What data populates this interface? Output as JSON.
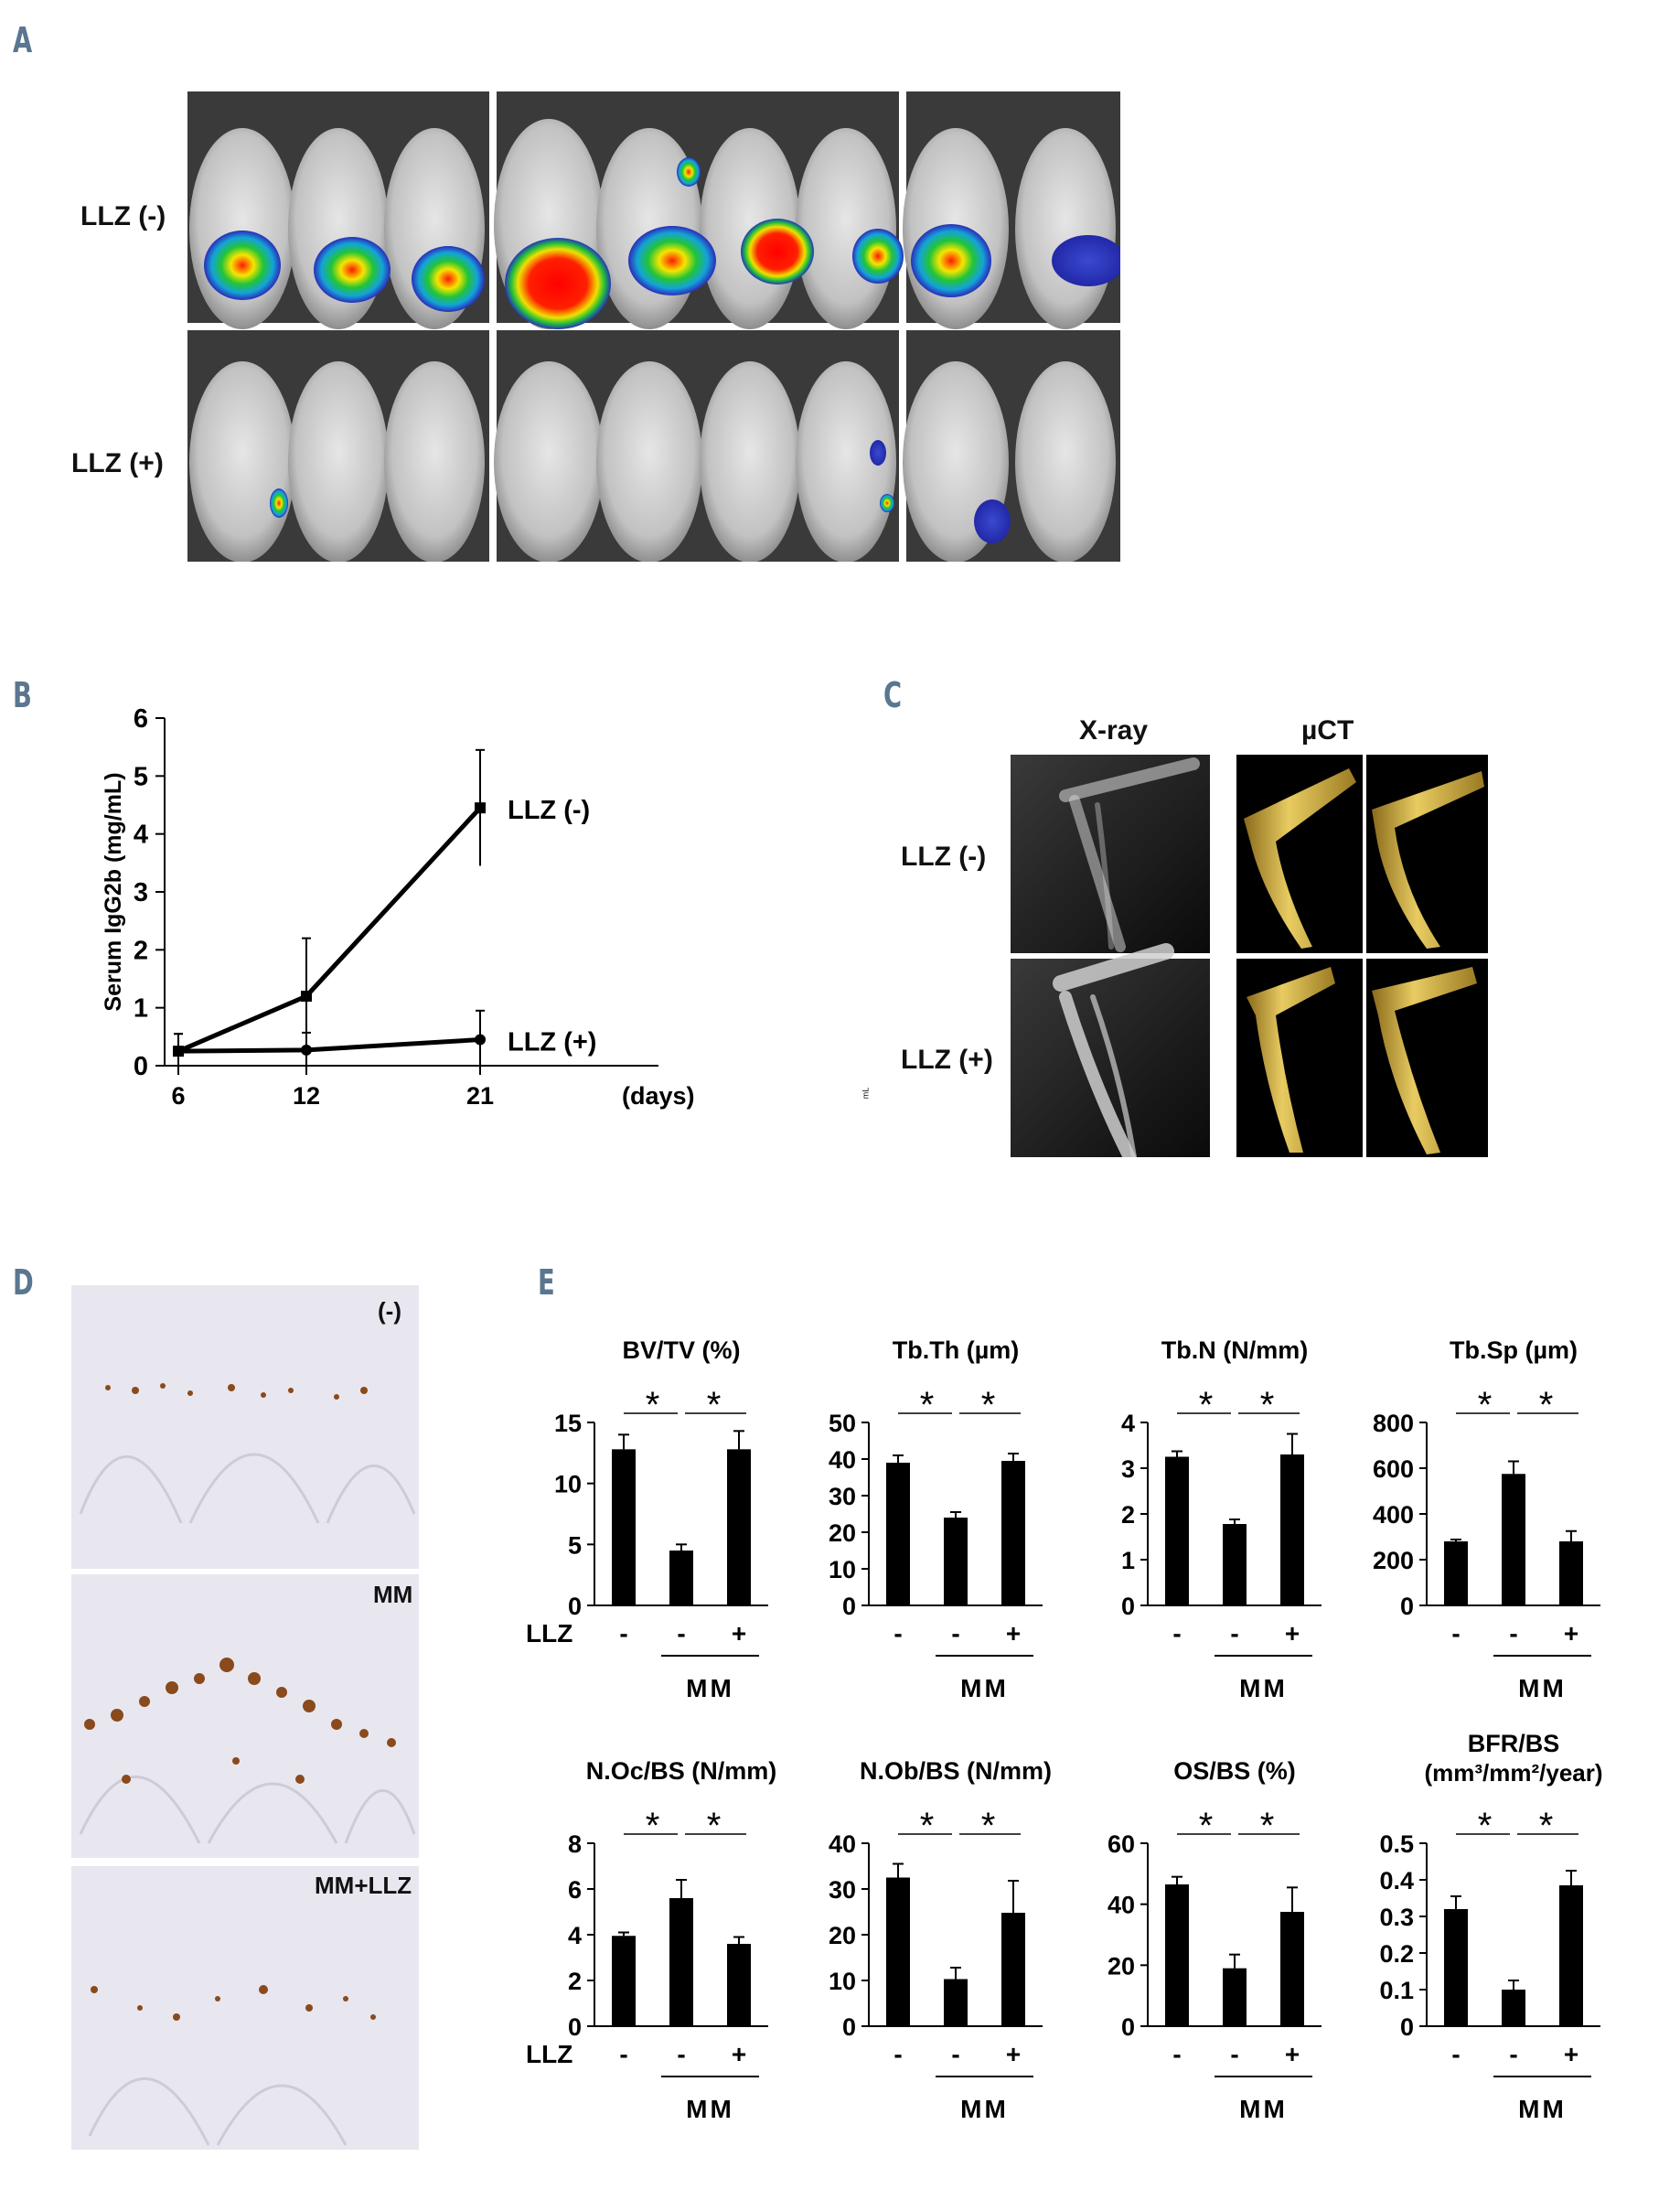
{
  "panels": {
    "a": "A",
    "b": "B",
    "c": "C",
    "d": "D",
    "e": "E"
  },
  "panel_a": {
    "row_labels": [
      "LLZ (-)",
      "LLZ (+)"
    ]
  },
  "panel_c": {
    "col_labels": [
      "X-ray",
      "µCT"
    ],
    "row_labels": [
      "LLZ (-)",
      "LLZ (+)"
    ],
    "stray_mark": "mL"
  },
  "panel_d": {
    "labels": [
      "(-)",
      "MM",
      "MM+LLZ"
    ]
  },
  "colors": {
    "line": "#000000",
    "bar": "#000000",
    "panel_letter": "#5a7690",
    "stain": "#8a4a1c",
    "bone": "#d9b94a"
  },
  "chart_data": [
    {
      "id": "B",
      "type": "line",
      "ylabel": "Serum IgG2b (mg/mL)",
      "xlabel": "(days)",
      "ylim": [
        0,
        6
      ],
      "yticks": [
        "0",
        "1",
        "2",
        "3",
        "4",
        "5",
        "6"
      ],
      "x": [
        "6",
        "12",
        "21"
      ],
      "series": [
        {
          "name": "LLZ (-)",
          "values": [
            0.25,
            1.2,
            4.45
          ],
          "err": [
            0.3,
            1.0,
            1.0
          ]
        },
        {
          "name": "LLZ (+)",
          "values": [
            0.25,
            0.27,
            0.45
          ],
          "err": [
            0.3,
            0.3,
            0.5
          ]
        }
      ]
    },
    {
      "id": "BVTV",
      "type": "bar",
      "title": "BV/TV (%)",
      "ylim": [
        0,
        15
      ],
      "yticks": [
        "0",
        "5",
        "10",
        "15"
      ],
      "values": [
        12.8,
        4.5,
        12.8
      ],
      "err": [
        1.2,
        0.5,
        1.5
      ],
      "categories": [
        "-",
        "-",
        "+"
      ],
      "row_label": "LLZ",
      "group_label": "MM",
      "sig": [
        "*",
        "*"
      ]
    },
    {
      "id": "TbTh",
      "type": "bar",
      "title": "Tb.Th (µm)",
      "ylim": [
        0,
        50
      ],
      "yticks": [
        "0",
        "10",
        "20",
        "30",
        "40",
        "50"
      ],
      "values": [
        39,
        24,
        39.5
      ],
      "err": [
        2,
        1.5,
        2
      ],
      "categories": [
        "-",
        "-",
        "+"
      ],
      "row_label": "",
      "group_label": "MM",
      "sig": [
        "*",
        "*"
      ]
    },
    {
      "id": "TbN",
      "type": "bar",
      "title": "Tb.N (N/mm)",
      "ylim": [
        0,
        4
      ],
      "yticks": [
        "0",
        "1",
        "2",
        "3",
        "4"
      ],
      "values": [
        3.25,
        1.78,
        3.3
      ],
      "err": [
        0.12,
        0.1,
        0.45
      ],
      "categories": [
        "-",
        "-",
        "+"
      ],
      "row_label": "",
      "group_label": "MM",
      "sig": [
        "*",
        "*"
      ]
    },
    {
      "id": "TbSp",
      "type": "bar",
      "title": "Tb.Sp (µm)",
      "ylim": [
        0,
        800
      ],
      "yticks": [
        "0",
        "200",
        "400",
        "600",
        "800"
      ],
      "values": [
        280,
        575,
        280
      ],
      "err": [
        8,
        55,
        45
      ],
      "categories": [
        "-",
        "-",
        "+"
      ],
      "row_label": "",
      "group_label": "MM",
      "sig": [
        "*",
        "*"
      ]
    },
    {
      "id": "NOcBS",
      "type": "bar",
      "title": "N.Oc/BS (N/mm)",
      "ylim": [
        0,
        8
      ],
      "yticks": [
        "0",
        "2",
        "4",
        "6",
        "8"
      ],
      "values": [
        3.95,
        5.6,
        3.6
      ],
      "err": [
        0.15,
        0.8,
        0.3
      ],
      "categories": [
        "-",
        "-",
        "+"
      ],
      "row_label": "LLZ",
      "group_label": "MM",
      "sig": [
        "*",
        "*"
      ]
    },
    {
      "id": "NObBS",
      "type": "bar",
      "title": "N.Ob/BS (N/mm)",
      "ylim": [
        0,
        40
      ],
      "yticks": [
        "0",
        "10",
        "20",
        "30",
        "40"
      ],
      "values": [
        32.5,
        10.3,
        24.8
      ],
      "err": [
        3,
        2.5,
        7
      ],
      "categories": [
        "-",
        "-",
        "+"
      ],
      "row_label": "",
      "group_label": "MM",
      "sig": [
        "*",
        "*"
      ]
    },
    {
      "id": "OSBS",
      "type": "bar",
      "title": "OS/BS (%)",
      "ylim": [
        0,
        60
      ],
      "yticks": [
        "0",
        "20",
        "40",
        "60"
      ],
      "values": [
        46.5,
        19,
        37.5
      ],
      "err": [
        2.5,
        4.5,
        8
      ],
      "categories": [
        "-",
        "-",
        "+"
      ],
      "row_label": "",
      "group_label": "MM",
      "sig": [
        "*",
        "*"
      ]
    },
    {
      "id": "BFRBS",
      "type": "bar",
      "title": "BFR/BS",
      "title2": "(mm³/mm²/year)",
      "ylim": [
        0,
        0.5
      ],
      "yticks": [
        "0",
        "0.1",
        "0.2",
        "0.3",
        "0.4",
        "0.5"
      ],
      "values": [
        0.32,
        0.1,
        0.385
      ],
      "err": [
        0.035,
        0.025,
        0.04
      ],
      "categories": [
        "-",
        "-",
        "+"
      ],
      "row_label": "",
      "group_label": "MM",
      "sig": [
        "*",
        "*"
      ]
    }
  ]
}
